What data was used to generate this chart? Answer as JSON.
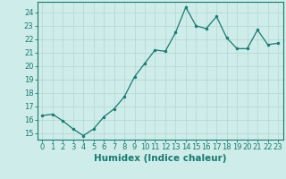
{
  "x": [
    0,
    1,
    2,
    3,
    4,
    5,
    6,
    7,
    8,
    9,
    10,
    11,
    12,
    13,
    14,
    15,
    16,
    17,
    18,
    19,
    20,
    21,
    22,
    23
  ],
  "y": [
    16.3,
    16.4,
    15.9,
    15.3,
    14.8,
    15.3,
    16.2,
    16.8,
    17.7,
    19.2,
    20.2,
    21.2,
    21.1,
    22.5,
    24.4,
    23.0,
    22.8,
    23.7,
    22.1,
    21.3,
    21.3,
    22.7,
    21.6,
    21.7
  ],
  "line_color": "#1a7a6e",
  "marker": "o",
  "marker_size": 2.0,
  "bg_color": "#ceecea",
  "grid_color": "#b8d8d6",
  "xlabel": "Humidex (Indice chaleur)",
  "xlim": [
    -0.5,
    23.5
  ],
  "ylim": [
    14.5,
    24.8
  ],
  "yticks": [
    15,
    16,
    17,
    18,
    19,
    20,
    21,
    22,
    23,
    24
  ],
  "xtick_labels": [
    "0",
    "1",
    "2",
    "3",
    "4",
    "5",
    "6",
    "7",
    "8",
    "9",
    "10",
    "11",
    "12",
    "13",
    "14",
    "15",
    "16",
    "17",
    "18",
    "19",
    "20",
    "21",
    "22",
    "23"
  ],
  "tick_fontsize": 6.0,
  "xlabel_fontsize": 7.5
}
